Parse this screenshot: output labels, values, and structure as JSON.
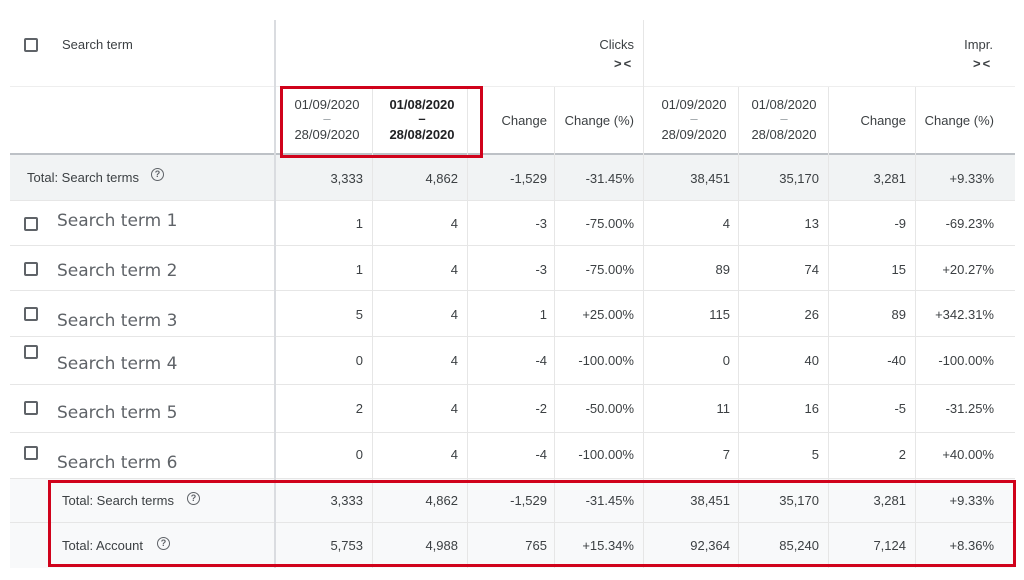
{
  "header": {
    "search_term_label": "Search term",
    "clicks_label": "Clicks",
    "impr_label": "Impr.",
    "collapse_glyph": "><",
    "columns": [
      {
        "start": "01/09/2020",
        "dash": "–",
        "end": "28/09/2020"
      },
      {
        "start": "01/08/2020",
        "dash": "–",
        "end": "28/08/2020"
      },
      {
        "label": "Change"
      },
      {
        "label": "Change (%)"
      },
      {
        "start": "01/09/2020",
        "dash": "–",
        "end": "28/09/2020"
      },
      {
        "start": "01/08/2020",
        "dash": "–",
        "end": "28/08/2020"
      },
      {
        "label": "Change"
      },
      {
        "label": "Change (%)"
      }
    ]
  },
  "total_top": {
    "label": "Total: Search terms",
    "help": "?",
    "values": [
      "3,333",
      "4,862",
      "-1,529",
      "-31.45%",
      "38,451",
      "35,170",
      "3,281",
      "+9.33%"
    ]
  },
  "rows": [
    {
      "name": "Search term 1",
      "values": [
        "1",
        "4",
        "-3",
        "-75.00%",
        "4",
        "13",
        "-9",
        "-69.23%"
      ]
    },
    {
      "name": "Search term 2",
      "values": [
        "1",
        "4",
        "-3",
        "-75.00%",
        "89",
        "74",
        "15",
        "+20.27%"
      ]
    },
    {
      "name": "Search term 3",
      "values": [
        "5",
        "4",
        "1",
        "+25.00%",
        "115",
        "26",
        "89",
        "+342.31%"
      ]
    },
    {
      "name": "Search term 4",
      "values": [
        "0",
        "4",
        "-4",
        "-100.00%",
        "0",
        "40",
        "-40",
        "-100.00%"
      ]
    },
    {
      "name": "Search term 5",
      "values": [
        "2",
        "4",
        "-2",
        "-50.00%",
        "11",
        "16",
        "-5",
        "-31.25%"
      ]
    },
    {
      "name": "Search term 6",
      "values": [
        "0",
        "4",
        "-4",
        "-100.00%",
        "7",
        "5",
        "2",
        "+40.00%"
      ]
    }
  ],
  "totals_bottom": [
    {
      "label": "Total: Search terms",
      "help": "?",
      "values": [
        "3,333",
        "4,862",
        "-1,529",
        "-31.45%",
        "38,451",
        "35,170",
        "3,281",
        "+9.33%"
      ]
    },
    {
      "label": "Total: Account",
      "help": "?",
      "values": [
        "5,753",
        "4,988",
        "765",
        "+15.34%",
        "92,364",
        "85,240",
        "7,124",
        "+8.36%"
      ]
    }
  ],
  "colors": {
    "highlight": "#d0021b",
    "total_bg": "#f1f3f4",
    "gridline": "#e6e6e6"
  }
}
